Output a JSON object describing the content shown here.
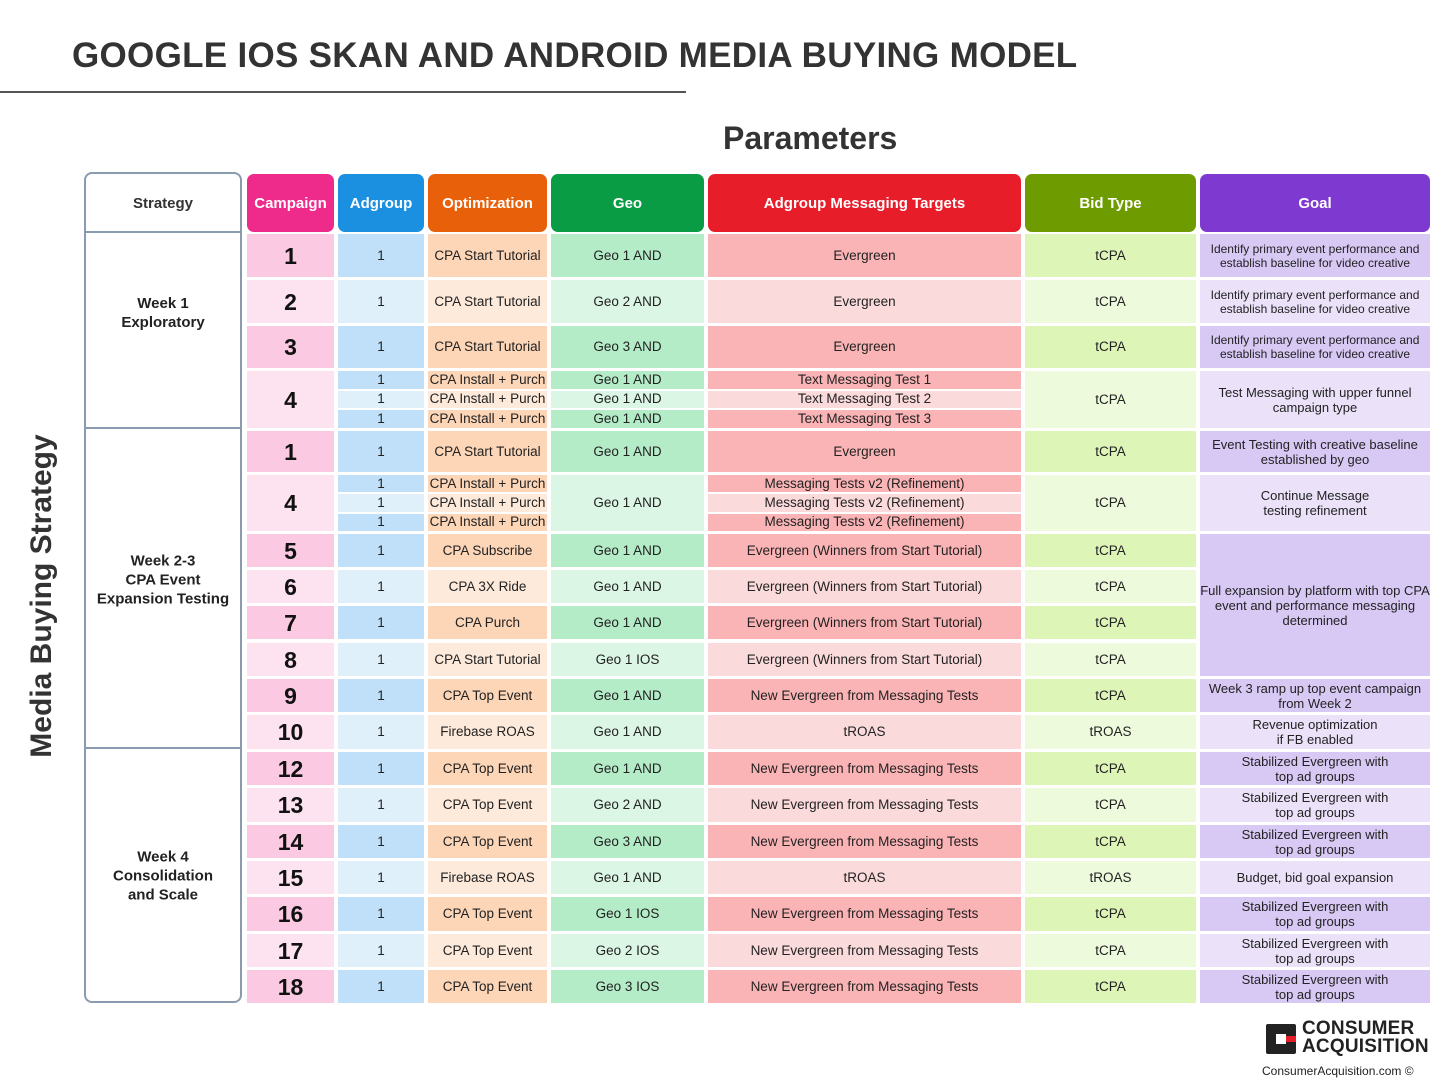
{
  "title": "GOOGLE IOS SKAN AND ANDROID MEDIA BUYING MODEL",
  "parameters_label": "Parameters",
  "side_label": "Media Buying Strategy",
  "strategy_header": "Strategy",
  "strategies": [
    {
      "label": "Week 1\nExploratory"
    },
    {
      "label": "Week 2-3\nCPA Event\nExpansion Testing"
    },
    {
      "label": "Week 4\nConsolidation\nand Scale"
    }
  ],
  "headers": {
    "campaign": "Campaign",
    "adgroup": "Adgroup",
    "optimization": "Optimization",
    "geo": "Geo",
    "messaging": "Adgroup Messaging Targets",
    "bid": "Bid Type",
    "goal": "Goal"
  },
  "colors": {
    "campaign": "#ee2a8a",
    "adgroup": "#1b8fe0",
    "optimization": "#e8610a",
    "geo": "#0a9b45",
    "messaging": "#e81d2a",
    "bid": "#6e9b00",
    "goal": "#7e3ad0"
  },
  "rows": [
    {
      "campaign": "1",
      "adgroup": [
        "1"
      ],
      "optimization": [
        "CPA Start Tutorial"
      ],
      "geo": [
        "Geo 1 AND"
      ],
      "messaging": [
        "Evergreen"
      ],
      "bid": "tCPA",
      "goal": "Identify primary event performance and establish baseline for video creative"
    },
    {
      "campaign": "2",
      "adgroup": [
        "1"
      ],
      "optimization": [
        "CPA Start Tutorial"
      ],
      "geo": [
        "Geo 2 AND"
      ],
      "messaging": [
        "Evergreen"
      ],
      "bid": "tCPA",
      "goal": "Identify primary event performance and establish baseline for video creative"
    },
    {
      "campaign": "3",
      "adgroup": [
        "1"
      ],
      "optimization": [
        "CPA Start Tutorial"
      ],
      "geo": [
        "Geo 3 AND"
      ],
      "messaging": [
        "Evergreen"
      ],
      "bid": "tCPA",
      "goal": "Identify primary event performance and establish baseline for video creative"
    },
    {
      "campaign": "4",
      "adgroup": [
        "1",
        "1",
        "1"
      ],
      "optimization": [
        "CPA Install + Purch",
        "CPA Install + Purch",
        "CPA Install + Purch"
      ],
      "geo": [
        "Geo 1 AND",
        "Geo 1 AND",
        "Geo 1 AND"
      ],
      "messaging": [
        "Text Messaging Test 1",
        "Text Messaging Test 2",
        "Text Messaging Test 3"
      ],
      "bid": "tCPA",
      "goal": "Test Messaging with upper funnel campaign type"
    },
    {
      "campaign": "1",
      "adgroup": [
        "1"
      ],
      "optimization": [
        "CPA Start Tutorial"
      ],
      "geo": [
        "Geo 1 AND"
      ],
      "messaging": [
        "Evergreen"
      ],
      "bid": "tCPA",
      "goal": "Event Testing with creative baseline established by geo"
    },
    {
      "campaign": "4",
      "adgroup": [
        "1",
        "1",
        "1"
      ],
      "optimization": [
        "CPA Install + Purch",
        "CPA Install + Purch",
        "CPA Install + Purch"
      ],
      "geo": [
        "Geo 1 AND"
      ],
      "messaging": [
        "Messaging Tests v2 (Refinement)",
        "Messaging Tests v2 (Refinement)",
        "Messaging Tests v2 (Refinement)"
      ],
      "bid": "tCPA",
      "goal": "Continue Message\ntesting refinement"
    },
    {
      "campaign": "5",
      "adgroup": [
        "1"
      ],
      "optimization": [
        "CPA Subscribe"
      ],
      "geo": [
        "Geo 1 AND"
      ],
      "messaging": [
        "Evergreen (Winners from Start Tutorial)"
      ],
      "bid": "tCPA",
      "goal": "Full expansion by platform with top CPA event and performance messaging determined"
    },
    {
      "campaign": "6",
      "adgroup": [
        "1"
      ],
      "optimization": [
        "CPA 3X Ride"
      ],
      "geo": [
        "Geo 1 AND"
      ],
      "messaging": [
        "Evergreen (Winners from Start Tutorial)"
      ],
      "bid": "tCPA",
      "goal": ""
    },
    {
      "campaign": "7",
      "adgroup": [
        "1"
      ],
      "optimization": [
        "CPA Purch"
      ],
      "geo": [
        "Geo 1 AND"
      ],
      "messaging": [
        "Evergreen (Winners from Start Tutorial)"
      ],
      "bid": "tCPA",
      "goal": ""
    },
    {
      "campaign": "8",
      "adgroup": [
        "1"
      ],
      "optimization": [
        "CPA Start Tutorial"
      ],
      "geo": [
        "Geo 1  IOS"
      ],
      "messaging": [
        "Evergreen (Winners from Start Tutorial)"
      ],
      "bid": "tCPA",
      "goal": ""
    },
    {
      "campaign": "9",
      "adgroup": [
        "1"
      ],
      "optimization": [
        "CPA Top Event"
      ],
      "geo": [
        "Geo 1 AND"
      ],
      "messaging": [
        "New Evergreen from Messaging Tests"
      ],
      "bid": "tCPA",
      "goal": "Week 3 ramp up top event campaign from Week 2"
    },
    {
      "campaign": "10",
      "adgroup": [
        "1"
      ],
      "optimization": [
        "Firebase ROAS"
      ],
      "geo": [
        "Geo 1 AND"
      ],
      "messaging": [
        "tROAS"
      ],
      "bid": "tROAS",
      "goal": "Revenue optimization\nif FB enabled"
    },
    {
      "campaign": "12",
      "adgroup": [
        "1"
      ],
      "optimization": [
        "CPA Top Event"
      ],
      "geo": [
        "Geo 1 AND"
      ],
      "messaging": [
        "New Evergreen from Messaging Tests"
      ],
      "bid": "tCPA",
      "goal": "Stabilized Evergreen with\ntop ad groups"
    },
    {
      "campaign": "13",
      "adgroup": [
        "1"
      ],
      "optimization": [
        "CPA Top Event"
      ],
      "geo": [
        "Geo 2 AND"
      ],
      "messaging": [
        "New Evergreen from Messaging Tests"
      ],
      "bid": "tCPA",
      "goal": "Stabilized Evergreen with\ntop ad groups"
    },
    {
      "campaign": "14",
      "adgroup": [
        "1"
      ],
      "optimization": [
        "CPA Top Event"
      ],
      "geo": [
        "Geo 3 AND"
      ],
      "messaging": [
        "New Evergreen from Messaging Tests"
      ],
      "bid": "tCPA",
      "goal": "Stabilized Evergreen with\ntop ad groups"
    },
    {
      "campaign": "15",
      "adgroup": [
        "1"
      ],
      "optimization": [
        "Firebase ROAS"
      ],
      "geo": [
        "Geo 1 AND"
      ],
      "messaging": [
        "tROAS"
      ],
      "bid": "tROAS",
      "goal": "Budget, bid goal expansion"
    },
    {
      "campaign": "16",
      "adgroup": [
        "1"
      ],
      "optimization": [
        "CPA Top Event"
      ],
      "geo": [
        "Geo 1 IOS"
      ],
      "messaging": [
        "New Evergreen from Messaging Tests"
      ],
      "bid": "tCPA",
      "goal": "Stabilized Evergreen with\ntop ad groups"
    },
    {
      "campaign": "17",
      "adgroup": [
        "1"
      ],
      "optimization": [
        "CPA Top Event"
      ],
      "geo": [
        "Geo 2 IOS"
      ],
      "messaging": [
        "New Evergreen from Messaging Tests"
      ],
      "bid": "tCPA",
      "goal": "Stabilized Evergreen with\ntop ad groups"
    },
    {
      "campaign": "18",
      "adgroup": [
        "1"
      ],
      "optimization": [
        "CPA Top Event"
      ],
      "geo": [
        "Geo 3 IOS"
      ],
      "messaging": [
        "New Evergreen from Messaging Tests"
      ],
      "bid": "tCPA",
      "goal": "Stabilized Evergreen with\ntop ad groups"
    }
  ],
  "logo": {
    "line1": "CONSUMER",
    "line2": "ACQUISITION"
  },
  "url": "ConsumerAcquisition.com ©"
}
